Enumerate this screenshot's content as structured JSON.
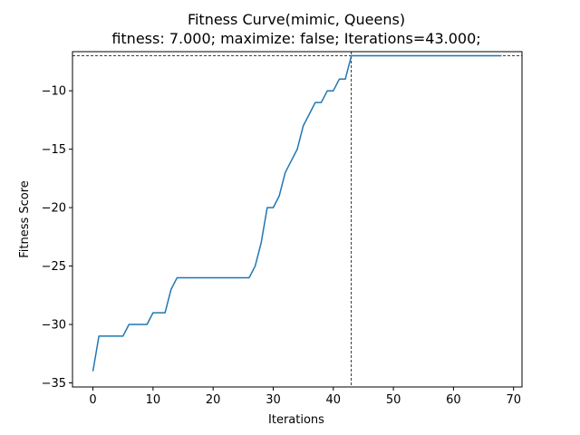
{
  "chart_data": {
    "type": "line",
    "title": "Fitness Curve(mimic, Queens)",
    "subtitle": "fitness: 7.000; maximize: false; Iterations=43.000;",
    "xlabel": "Iterations",
    "ylabel": "Fitness Score",
    "xlim": [
      -3.4,
      71.4
    ],
    "ylim": [
      -35.35,
      -6.65
    ],
    "xticks": [
      0,
      10,
      20,
      30,
      40,
      50,
      60,
      70
    ],
    "yticks": [
      -35,
      -30,
      -25,
      -20,
      -15,
      -10
    ],
    "tick_labels_x": [
      "0",
      "10",
      "20",
      "30",
      "40",
      "50",
      "60",
      "70"
    ],
    "tick_labels_y": [
      "−35",
      "−30",
      "−25",
      "−20",
      "−15",
      "−10"
    ],
    "grid": false,
    "line_color": "#1f77b4",
    "reference_lines": {
      "vertical_x": 43,
      "horizontal_y": -7
    },
    "series": [
      {
        "x": [
          0,
          1,
          2,
          3,
          4,
          5,
          6,
          7,
          8,
          9,
          10,
          11,
          12,
          13,
          14,
          15,
          16,
          17,
          18,
          19,
          20,
          21,
          22,
          23,
          24,
          25,
          26,
          27,
          28,
          29,
          30,
          31,
          32,
          33,
          34,
          35,
          36,
          37,
          38,
          39,
          40,
          41,
          42,
          43,
          44,
          45,
          46,
          47,
          48,
          49,
          50,
          51,
          52,
          53,
          54,
          55,
          56,
          57,
          58,
          59,
          60,
          61,
          62,
          63,
          64,
          65,
          66,
          67,
          68
        ],
        "values": [
          -34,
          -31,
          -31,
          -31,
          -31,
          -31,
          -30,
          -30,
          -30,
          -30,
          -29,
          -29,
          -29,
          -27,
          -26,
          -26,
          -26,
          -26,
          -26,
          -26,
          -26,
          -26,
          -26,
          -26,
          -26,
          -26,
          -26,
          -25,
          -23,
          -20,
          -20,
          -19,
          -17,
          -16,
          -15,
          -13,
          -12,
          -11,
          -11,
          -10,
          -10,
          -9,
          -9,
          -7,
          -7,
          -7,
          -7,
          -7,
          -7,
          -7,
          -7,
          -7,
          -7,
          -7,
          -7,
          -7,
          -7,
          -7,
          -7,
          -7,
          -7,
          -7,
          -7,
          -7,
          -7,
          -7,
          -7,
          -7,
          -7
        ]
      }
    ]
  }
}
